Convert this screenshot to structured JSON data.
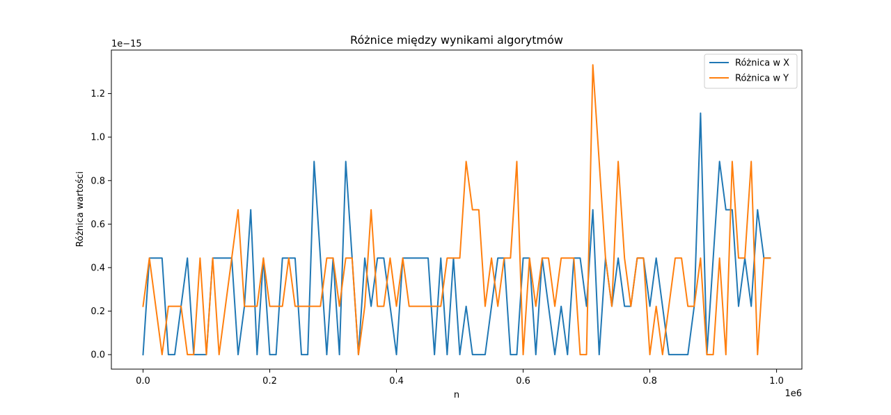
{
  "chart_data": {
    "type": "line",
    "title": "Różnice między wynikami algorytmów",
    "xlabel": "n",
    "ylabel": "Różnica wartości",
    "x_offset_label": "1e6",
    "y_offset_label": "1e−15",
    "x_unit_scale": 1000000,
    "y_unit_scale": 1e-15,
    "xlim": [
      -50000,
      1040000
    ],
    "ylim": [
      -0.0666,
      1.4
    ],
    "x_ticks": [
      0,
      200000,
      400000,
      600000,
      800000,
      1000000
    ],
    "x_tick_labels": [
      "0.0",
      "0.2",
      "0.4",
      "0.6",
      "0.8",
      "1.0"
    ],
    "y_ticks": [
      0,
      0.2,
      0.4,
      0.6,
      0.8,
      1.0,
      1.2
    ],
    "y_tick_labels": [
      "0.0",
      "0.2",
      "0.4",
      "0.6",
      "0.8",
      "1.0",
      "1.2"
    ],
    "grid": false,
    "legend_position": "top-right",
    "x": [
      0,
      10000,
      20000,
      30000,
      40000,
      50000,
      60000,
      70000,
      80000,
      90000,
      100000,
      110000,
      120000,
      130000,
      140000,
      150000,
      160000,
      170000,
      180000,
      190000,
      200000,
      210000,
      220000,
      230000,
      240000,
      250000,
      260000,
      270000,
      280000,
      290000,
      300000,
      310000,
      320000,
      330000,
      340000,
      350000,
      360000,
      370000,
      380000,
      390000,
      400000,
      410000,
      420000,
      430000,
      440000,
      450000,
      460000,
      470000,
      480000,
      490000,
      500000,
      510000,
      520000,
      530000,
      540000,
      550000,
      560000,
      570000,
      580000,
      590000,
      600000,
      610000,
      620000,
      630000,
      640000,
      650000,
      660000,
      670000,
      680000,
      690000,
      700000,
      710000,
      720000,
      730000,
      740000,
      750000,
      760000,
      770000,
      780000,
      790000,
      800000,
      810000,
      820000,
      830000,
      840000,
      850000,
      860000,
      870000,
      880000,
      890000,
      900000,
      910000,
      920000,
      930000,
      940000,
      950000,
      960000,
      970000,
      980000,
      990000
    ],
    "series": [
      {
        "name": "Różnica w X",
        "color": "#1f77b4",
        "values": [
          0,
          0.444,
          0.444,
          0.444,
          0,
          0,
          0.222,
          0.444,
          0,
          0,
          0,
          0.444,
          0.444,
          0.444,
          0.444,
          0,
          0.222,
          0.666,
          0,
          0.444,
          0,
          0,
          0.444,
          0.444,
          0.444,
          0,
          0,
          0.888,
          0.444,
          0,
          0.444,
          0,
          0.888,
          0.444,
          0,
          0.444,
          0.222,
          0.444,
          0.444,
          0.222,
          0,
          0.444,
          0.444,
          0.444,
          0.444,
          0.444,
          0,
          0.444,
          0,
          0.444,
          0,
          0.222,
          0,
          0,
          0,
          0.222,
          0.444,
          0.444,
          0,
          0,
          0.444,
          0.444,
          0,
          0.444,
          0.222,
          0,
          0.222,
          0,
          0.444,
          0.444,
          0.222,
          0.666,
          0,
          0.444,
          0.222,
          0.444,
          0.222,
          0.222,
          0.444,
          0.444,
          0.222,
          0.444,
          0.222,
          0,
          0,
          0,
          0,
          0.222,
          1.11,
          0,
          0.444,
          0.888,
          0.666,
          0.666,
          0.222,
          0.444,
          0.222,
          0.666,
          0.444,
          0.444
        ]
      },
      {
        "name": "Różnica w Y",
        "color": "#ff7f0e",
        "values": [
          0.222,
          0.444,
          0.222,
          0,
          0.222,
          0.222,
          0.222,
          0,
          0,
          0.444,
          0,
          0.444,
          0,
          0.222,
          0.444,
          0.666,
          0.222,
          0.222,
          0.222,
          0.444,
          0.222,
          0.222,
          0.222,
          0.444,
          0.222,
          0.222,
          0.222,
          0.222,
          0.222,
          0.444,
          0.444,
          0.222,
          0.444,
          0.444,
          0,
          0.222,
          0.666,
          0.222,
          0.222,
          0.444,
          0.222,
          0.444,
          0.222,
          0.222,
          0.222,
          0.222,
          0.222,
          0.222,
          0.444,
          0.444,
          0.444,
          0.888,
          0.666,
          0.666,
          0.222,
          0.444,
          0.222,
          0.444,
          0.444,
          0.888,
          0,
          0.444,
          0.222,
          0.444,
          0.444,
          0.222,
          0.444,
          0.444,
          0.444,
          0,
          0,
          1.332,
          0.888,
          0.444,
          0.222,
          0.888,
          0.444,
          0.222,
          0.444,
          0.444,
          0,
          0.222,
          0,
          0.222,
          0.444,
          0.444,
          0.222,
          0.222,
          0.444,
          0,
          0,
          0.444,
          0,
          0.888,
          0.444,
          0.444,
          0.888,
          0,
          0.444,
          0.444
        ]
      }
    ]
  }
}
